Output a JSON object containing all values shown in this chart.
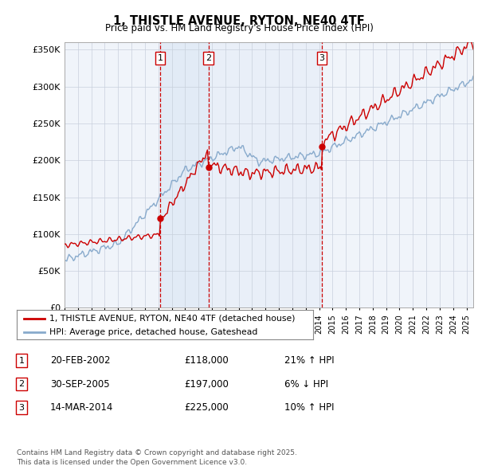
{
  "title": "1, THISTLE AVENUE, RYTON, NE40 4TF",
  "subtitle": "Price paid vs. HM Land Registry's House Price Index (HPI)",
  "legend_line1": "1, THISTLE AVENUE, RYTON, NE40 4TF (detached house)",
  "legend_line2": "HPI: Average price, detached house, Gateshead",
  "sale_color": "#cc0000",
  "hpi_color": "#88aacc",
  "background_color": "#f0f4fa",
  "vline_color": "#cc0000",
  "shade_color": "#dde8f5",
  "grid_color": "#c8d0dc",
  "transactions": [
    {
      "num": 1,
      "date": "20-FEB-2002",
      "price": 118000,
      "pct": "21%",
      "dir": "↑",
      "rel": "HPI",
      "year": 2002.13
    },
    {
      "num": 2,
      "date": "30-SEP-2005",
      "price": 197000,
      "pct": "6%",
      "dir": "↓",
      "rel": "HPI",
      "year": 2005.75
    },
    {
      "num": 3,
      "date": "14-MAR-2014",
      "price": 225000,
      "pct": "10%",
      "dir": "↑",
      "rel": "HPI",
      "year": 2014.21
    }
  ],
  "footnote": "Contains HM Land Registry data © Crown copyright and database right 2025.\nThis data is licensed under the Open Government Licence v3.0.",
  "xlim_start": 1995.0,
  "xlim_end": 2025.5,
  "ylim_min": 0,
  "ylim_max": 360000,
  "yticks": [
    0,
    50000,
    100000,
    150000,
    200000,
    250000,
    300000,
    350000
  ]
}
